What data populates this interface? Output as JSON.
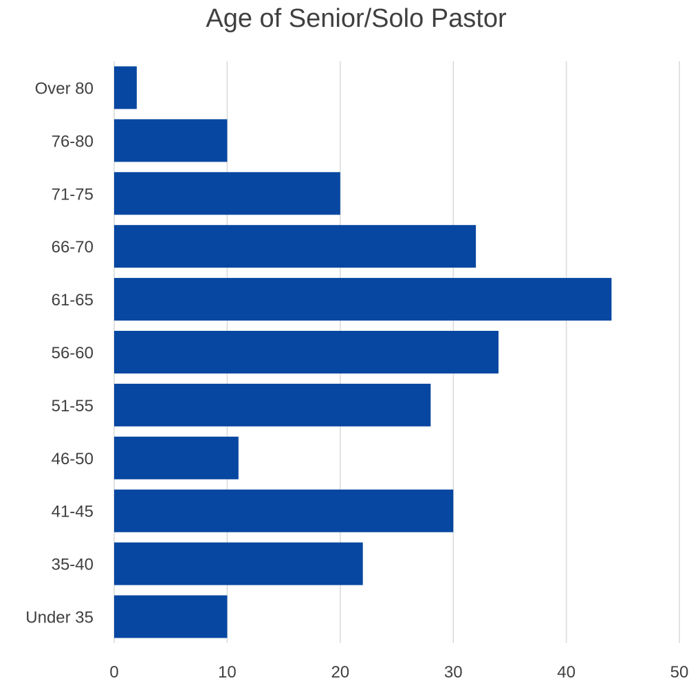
{
  "chart_data": {
    "type": "bar",
    "orientation": "horizontal",
    "title": "Age of Senior/Solo Pastor",
    "xlabel": "",
    "ylabel": "",
    "categories": [
      "Over 80",
      "76-80",
      "71-75",
      "66-70",
      "61-65",
      "56-60",
      "51-55",
      "46-50",
      "41-45",
      "35-40",
      "Under 35"
    ],
    "values": [
      2,
      10,
      20,
      32,
      44,
      34,
      28,
      11,
      30,
      22,
      10
    ],
    "xlim": [
      0,
      50
    ],
    "xticks": [
      "0",
      "10",
      "20",
      "30",
      "40",
      "50"
    ],
    "grid": "vertical",
    "legend": "none",
    "bar_color": "#0747A1",
    "grid_color": "#D9D9D9"
  }
}
